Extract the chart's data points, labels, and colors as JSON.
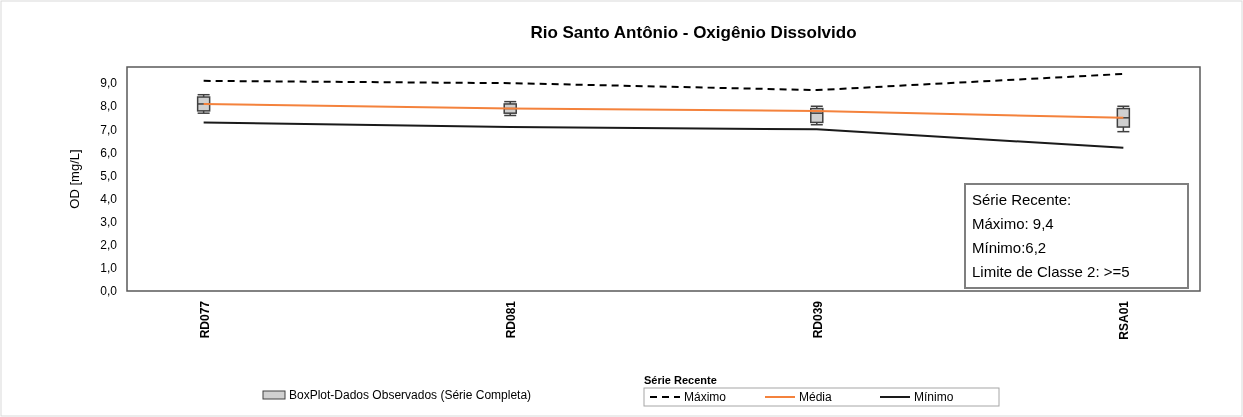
{
  "chart_data": {
    "type": "line",
    "title": "Rio Santo Antônio - Oxigênio Dissolvido",
    "ylabel": "OD [mg/L]",
    "legend_title": "Série Recente",
    "categories": [
      "RD077",
      "RD081",
      "RD039",
      "RSA01"
    ],
    "ylim": [
      0,
      9.7
    ],
    "yticks": [
      {
        "value": 0,
        "label": "0,0"
      },
      {
        "value": 1,
        "label": "1,0"
      },
      {
        "value": 2,
        "label": "2,0"
      },
      {
        "value": 3,
        "label": "3,0"
      },
      {
        "value": 4,
        "label": "4,0"
      },
      {
        "value": 5,
        "label": "5,0"
      },
      {
        "value": 6,
        "label": "6,0"
      },
      {
        "value": 7,
        "label": "7,0"
      },
      {
        "value": 8,
        "label": "8,0"
      },
      {
        "value": 9,
        "label": "9,0"
      }
    ],
    "grid": false,
    "legend": "bottom",
    "marker": "none",
    "series": [
      {
        "type": "box",
        "name": "BoxPlot-Dados Observados (Série Completa)",
        "color": "#d0d0d0",
        "boxes": [
          {
            "low": 7.7,
            "q1": 7.8,
            "median": 8.1,
            "q3": 8.4,
            "high": 8.5
          },
          {
            "low": 7.6,
            "q1": 7.7,
            "median": 7.9,
            "q3": 8.1,
            "high": 8.2
          },
          {
            "low": 7.2,
            "q1": 7.3,
            "median": 7.7,
            "q3": 7.9,
            "high": 8.0
          },
          {
            "low": 6.9,
            "q1": 7.1,
            "median": 7.5,
            "q3": 7.9,
            "high": 8.0
          }
        ]
      },
      {
        "name": "Máximo",
        "color": "#000000",
        "line_style": "dashed",
        "values": [
          9.1,
          9.0,
          8.7,
          9.4
        ]
      },
      {
        "name": "Média",
        "color": "#f4823c",
        "line_style": "solid",
        "values": [
          8.1,
          7.9,
          7.8,
          7.5
        ]
      },
      {
        "name": "Mínimo",
        "color": "#1a1a1a",
        "line_style": "solid",
        "values": [
          7.3,
          7.1,
          7.0,
          6.2
        ]
      }
    ],
    "annotations": [
      "Série Recente:",
      "Máximo: 9,4",
      "Mínimo:6,2",
      "Limite de Classe 2: >=5"
    ]
  }
}
